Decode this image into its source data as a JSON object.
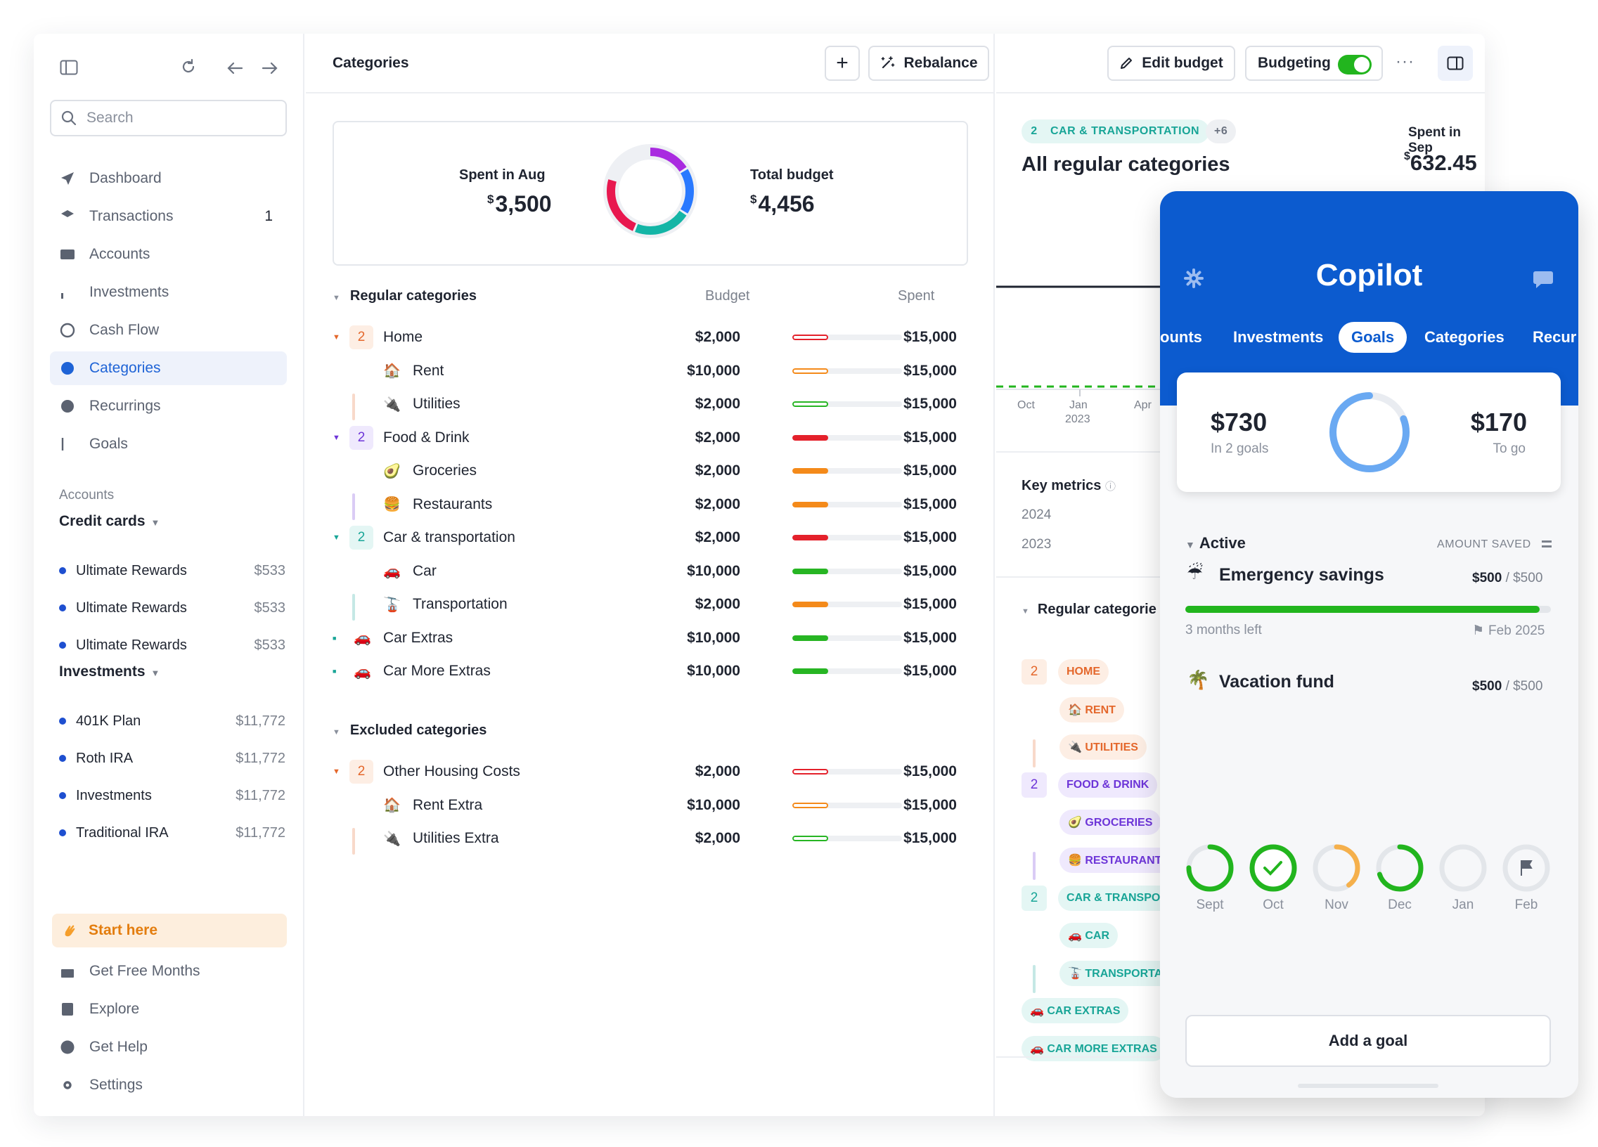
{
  "sidebar": {
    "search_placeholder": "Search",
    "nav": [
      {
        "label": "Dashboard",
        "icon": "send-icon"
      },
      {
        "label": "Transactions",
        "icon": "layers-icon",
        "count": "1"
      },
      {
        "label": "Accounts",
        "icon": "card-icon"
      },
      {
        "label": "Investments",
        "icon": "bar-chart-icon"
      },
      {
        "label": "Cash Flow",
        "icon": "gauge-icon"
      },
      {
        "label": "Categories",
        "icon": "pie-icon",
        "active": true
      },
      {
        "label": "Recurrings",
        "icon": "recurring-icon"
      },
      {
        "label": "Goals",
        "icon": "flag-icon"
      }
    ],
    "accounts_label": "Accounts",
    "credit_cards_label": "Credit cards",
    "credit_cards": [
      {
        "name": "Ultimate Rewards",
        "amount": "$533"
      },
      {
        "name": "Ultimate Rewards",
        "amount": "$533"
      },
      {
        "name": "Ultimate Rewards",
        "amount": "$533"
      }
    ],
    "investments_label": "Investments",
    "investments": [
      {
        "name": "401K Plan",
        "amount": "$11,772"
      },
      {
        "name": "Roth IRA",
        "amount": "$11,772"
      },
      {
        "name": "Investments",
        "amount": "$11,772"
      },
      {
        "name": "Traditional IRA",
        "amount": "$11,772"
      }
    ],
    "start_here": "Start here",
    "bottom": [
      {
        "label": "Get Free Months",
        "icon": "gift-icon"
      },
      {
        "label": "Explore",
        "icon": "book-icon"
      },
      {
        "label": "Get Help",
        "icon": "help-icon"
      },
      {
        "label": "Settings",
        "icon": "gear-icon"
      }
    ]
  },
  "categories": {
    "title": "Categories",
    "add_label": "+",
    "rebalance_label": "Rebalance",
    "spent_label": "Spent in Aug",
    "spent_value": "3,500",
    "budget_label": "Total budget",
    "budget_value": "4,456",
    "currency": "$",
    "regular_label": "Regular categories",
    "budget_col": "Budget",
    "spent_col": "Spent",
    "excluded_label": "Excluded categories",
    "rows": [
      {
        "kind": "group",
        "badge": "2",
        "name": "Home",
        "budget": "$2,000",
        "spent": "$15,000",
        "color": "#e4212b",
        "progress": 0.33,
        "outline": true,
        "badge_bg": "#fdeee4",
        "badge_fg": "#e4672b"
      },
      {
        "kind": "sub",
        "emoji": "🏠",
        "name": "Rent",
        "budget": "$10,000",
        "spent": "$15,000",
        "color": "#f48a1a",
        "progress": 0.33,
        "outline": true
      },
      {
        "kind": "sub",
        "emoji": "🔌",
        "name": "Utilities",
        "budget": "$2,000",
        "spent": "$15,000",
        "color": "#27b523",
        "progress": 0.33,
        "outline": true
      },
      {
        "kind": "group",
        "badge": "2",
        "name": "Food & Drink",
        "budget": "$2,000",
        "spent": "$15,000",
        "color": "#e4212b",
        "progress": 0.33,
        "outline": false,
        "badge_bg": "#efe9fd",
        "badge_fg": "#6d35d8"
      },
      {
        "kind": "sub",
        "emoji": "🥑",
        "name": "Groceries",
        "budget": "$2,000",
        "spent": "$15,000",
        "color": "#f48a1a",
        "progress": 0.33,
        "outline": false
      },
      {
        "kind": "sub",
        "emoji": "🍔",
        "name": "Restaurants",
        "budget": "$2,000",
        "spent": "$15,000",
        "color": "#f48a1a",
        "progress": 0.33,
        "outline": false
      },
      {
        "kind": "group",
        "badge": "2",
        "name": "Car & transportation",
        "budget": "$2,000",
        "spent": "$15,000",
        "color": "#e4212b",
        "progress": 0.33,
        "outline": false,
        "badge_bg": "#e4f6f4",
        "badge_fg": "#18a597"
      },
      {
        "kind": "sub",
        "emoji": "🚗",
        "name": "Car",
        "budget": "$10,000",
        "spent": "$15,000",
        "color": "#27b523",
        "progress": 0.33,
        "outline": false
      },
      {
        "kind": "sub",
        "emoji": "🚡",
        "name": "Transportation",
        "budget": "$2,000",
        "spent": "$15,000",
        "color": "#f48a1a",
        "progress": 0.33,
        "outline": false
      },
      {
        "kind": "top",
        "emoji": "🚗",
        "name": "Car Extras",
        "budget": "$10,000",
        "spent": "$15,000",
        "color": "#27b523",
        "progress": 0.33,
        "outline": false
      },
      {
        "kind": "top",
        "emoji": "🚗",
        "name": "Car More Extras",
        "budget": "$10,000",
        "spent": "$15,000",
        "color": "#27b523",
        "progress": 0.33,
        "outline": false
      }
    ],
    "excluded_rows": [
      {
        "kind": "group",
        "badge": "2",
        "name": "Other Housing Costs",
        "budget": "$2,000",
        "spent": "$15,000",
        "color": "#e4212b",
        "progress": 0.33,
        "outline": true,
        "badge_bg": "#fdeee4",
        "badge_fg": "#e4672b"
      },
      {
        "kind": "sub",
        "emoji": "🏠",
        "name": "Rent Extra",
        "budget": "$10,000",
        "spent": "$15,000",
        "color": "#f48a1a",
        "progress": 0.33,
        "outline": true
      },
      {
        "kind": "sub",
        "emoji": "🔌",
        "name": "Utilities Extra",
        "budget": "$2,000",
        "spent": "$15,000",
        "color": "#27b523",
        "progress": 0.33,
        "outline": true
      }
    ]
  },
  "detail": {
    "edit_budget_label": "Edit budget",
    "budgeting_label": "Budgeting",
    "more_label": "···",
    "filter_count": "2",
    "filter_label": "CAR & TRANSPORTATION",
    "filter_more": "+6",
    "heading": "All regular categories",
    "spent_in_label": "Spent in Sep",
    "spent_in_value": "632.45",
    "axis": [
      "Oct",
      "Jan",
      "Apr"
    ],
    "axis_year": "2023",
    "key_metrics_label": "Key metrics",
    "years": [
      "2024",
      "2023"
    ],
    "regular_label": "Regular categorie",
    "tags": [
      {
        "kind": "group",
        "badge": "2",
        "label": "HOME",
        "bg": "#fdeee4",
        "fg": "#e4672b"
      },
      {
        "kind": "sub",
        "label": "🏠 RENT",
        "bg": "#fdeee4",
        "fg": "#e4672b"
      },
      {
        "kind": "sub",
        "label": "🔌 UTILITIES",
        "bg": "#fdeee4",
        "fg": "#e4672b"
      },
      {
        "kind": "group",
        "badge": "2",
        "label": "FOOD & DRINK",
        "bg": "#efe9fd",
        "fg": "#6d35d8"
      },
      {
        "kind": "sub",
        "label": "🥑 GROCERIES",
        "bg": "#efe9fd",
        "fg": "#6d35d8"
      },
      {
        "kind": "sub",
        "label": "🍔 RESTAURANTS",
        "bg": "#efe9fd",
        "fg": "#6d35d8"
      },
      {
        "kind": "group",
        "badge": "2",
        "label": "CAR & TRANSPOR",
        "bg": "#e4f6f4",
        "fg": "#18a597"
      },
      {
        "kind": "sub",
        "label": "🚗 CAR",
        "bg": "#e4f6f4",
        "fg": "#18a597"
      },
      {
        "kind": "sub",
        "label": "🚡 TRANSPORTAT",
        "bg": "#e4f6f4",
        "fg": "#18a597"
      },
      {
        "kind": "top",
        "label": "🚗 CAR EXTRAS",
        "bg": "#e4f6f4",
        "fg": "#18a597"
      },
      {
        "kind": "top",
        "label": "🚗 CAR MORE EXTRAS",
        "bg": "#e4f6f4",
        "fg": "#18a597"
      }
    ]
  },
  "copilot": {
    "title": "Copilot",
    "tabs": [
      "ounts",
      "Investments",
      "Goals",
      "Categories",
      "Recur"
    ],
    "saved_amount": "$730",
    "saved_sub": "In 2 goals",
    "togo_amount": "$170",
    "togo_sub": "To go",
    "active_label": "Active",
    "amount_saved_label": "AMOUNT SAVED",
    "goals": [
      {
        "emoji": "☔",
        "name": "Emergency savings",
        "saved": "$500",
        "target": "/ $500",
        "left": "3 months left",
        "date": "Feb 2025",
        "progress": 0.97
      }
    ],
    "vacation": {
      "emoji": "🌴",
      "name": "Vacation fund",
      "saved": "$500",
      "target": "/ $500"
    },
    "months": [
      {
        "label": "Sept",
        "progress": 0.75,
        "color": "#22b51e"
      },
      {
        "label": "Oct",
        "progress": 1.0,
        "color": "#22b51e",
        "check": true
      },
      {
        "label": "Nov",
        "progress": 0.4,
        "color": "#f5b04c"
      },
      {
        "label": "Dec",
        "progress": 0.7,
        "color": "#22b51e"
      },
      {
        "label": "Jan",
        "progress": 0,
        "color": "#22b51e"
      },
      {
        "label": "Feb",
        "progress": 0,
        "color": "#22b51e",
        "flag": true
      }
    ],
    "add_goal_label": "Add a goal"
  },
  "colors": {
    "accent": "#1e63d6",
    "copilot_blue": "#0c5bcf",
    "green": "#27b523",
    "red": "#e4212b",
    "orange": "#f48a1a"
  }
}
